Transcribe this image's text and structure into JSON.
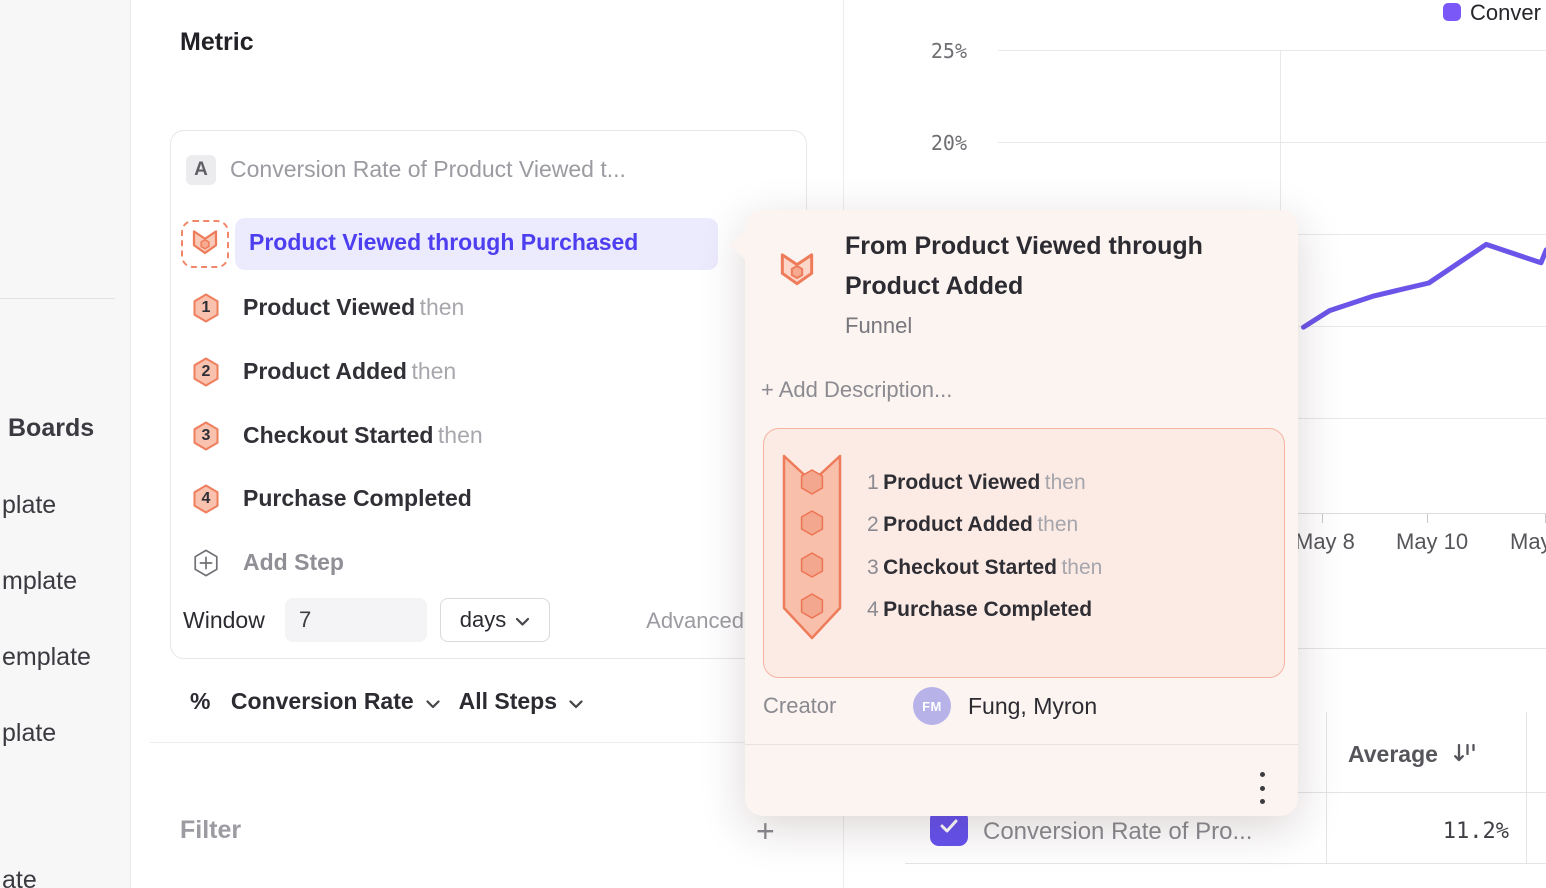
{
  "sidebar": {
    "items": [
      {
        "label": "Boards"
      },
      {
        "label": "plate"
      },
      {
        "label": "mplate"
      },
      {
        "label": "emplate"
      },
      {
        "label": "plate"
      },
      {
        "label": "ate"
      }
    ]
  },
  "metric_section": {
    "heading": "Metric",
    "card": {
      "label_badge": "A",
      "title": "Conversion Rate of Product Viewed t...",
      "selected_funnel": "Product Viewed through Purchased",
      "steps": [
        {
          "num": "1",
          "name": "Product Viewed",
          "suffix": "then"
        },
        {
          "num": "2",
          "name": "Product Added",
          "suffix": "then"
        },
        {
          "num": "3",
          "name": "Checkout Started",
          "suffix": "then"
        },
        {
          "num": "4",
          "name": "Purchase Completed",
          "suffix": ""
        }
      ],
      "add_step_label": "Add Step",
      "window_label": "Window",
      "window_value": "7",
      "window_unit": "days",
      "advanced_label": "Advanced"
    },
    "measure_row": {
      "prefix": "%",
      "measure": "Conversion Rate",
      "steps_scope": "All Steps"
    }
  },
  "filter_section": {
    "heading": "Filter"
  },
  "popup": {
    "title": "From Product Viewed through Product Added",
    "type_label": "Funnel",
    "add_description_label": "+ Add Description...",
    "steps": [
      {
        "num": "1",
        "name": "Product Viewed",
        "suffix": "then"
      },
      {
        "num": "2",
        "name": "Product Added",
        "suffix": "then"
      },
      {
        "num": "3",
        "name": "Checkout Started",
        "suffix": "then"
      },
      {
        "num": "4",
        "name": "Purchase Completed",
        "suffix": ""
      }
    ],
    "creator_label": "Creator",
    "creator_avatar_initials": "FM",
    "creator_name": "Fung, Myron"
  },
  "chart_data": {
    "type": "line",
    "series": [
      {
        "name": "Conver (clipped legend label)",
        "color": "#6b55e9"
      }
    ],
    "y_tick_labels": [
      "25%",
      "20%"
    ],
    "x_tick_labels": [
      "May 8",
      "May 10",
      "May"
    ],
    "ylim_visible_gridlines_pct": [
      25,
      20,
      15,
      10,
      5
    ],
    "grid": true,
    "legend_position": "top-right",
    "visible_points": [
      {
        "day": -0.45,
        "value": 10.1
      },
      {
        "day": 0.05,
        "value": 11.0
      },
      {
        "day": 0.9,
        "value": 11.8
      },
      {
        "day": 1.95,
        "value": 12.5
      },
      {
        "day": 3.05,
        "value": 14.6
      },
      {
        "day": 4.1,
        "value": 13.6
      },
      {
        "day": 4.2,
        "value": 14.3
      }
    ],
    "note": "day = offset from May 8 tick; left part of series hidden behind popup"
  },
  "legend": {
    "label": "Conver",
    "color": "#7a57f7"
  },
  "table": {
    "sorted_column": "Average",
    "rows": [
      {
        "name": "Conversion Rate of Pro...",
        "value": "11.2%",
        "checked": true
      }
    ]
  },
  "colors": {
    "accent_purple": "#6b55e9",
    "highlight_text": "#4d3ef0",
    "highlight_bg": "#eceafd",
    "funnel_salmon_stroke": "#ef7e5d",
    "funnel_salmon_fill": "#f9c2ae",
    "popup_bg": "#fcf4f1",
    "checkbox_purple": "#6553ef"
  }
}
